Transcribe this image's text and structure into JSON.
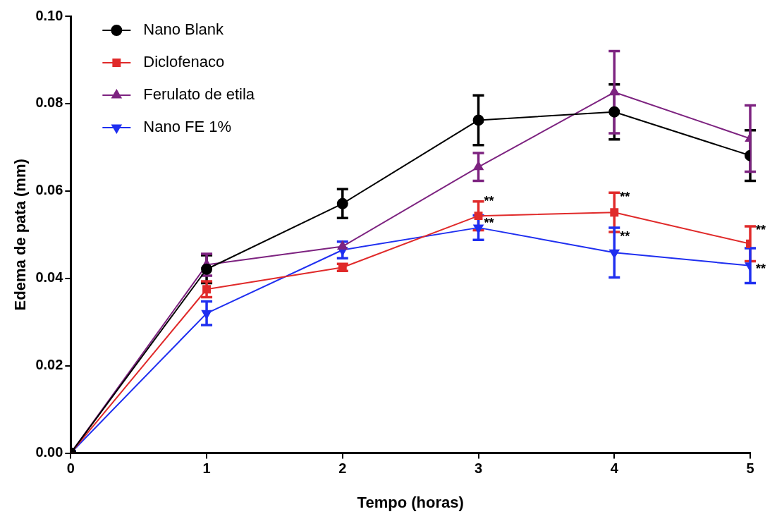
{
  "chart_data": {
    "type": "line",
    "xlabel": "Tempo (horas)",
    "ylabel": "Edema de pata (mm)",
    "x": [
      0,
      1,
      2,
      3,
      4,
      5
    ],
    "xlim": [
      0,
      5
    ],
    "xticks": [
      0,
      1,
      2,
      3,
      4,
      5
    ],
    "ylim": [
      0,
      0.1
    ],
    "yticks": [
      {
        "value": 0,
        "label": "0.00"
      },
      {
        "value": 0.02,
        "label": "0.02"
      },
      {
        "value": 0.04,
        "label": "0.04"
      },
      {
        "value": 0.06,
        "label": "0.06"
      },
      {
        "value": 0.08,
        "label": "0.08"
      },
      {
        "value": 0.1,
        "label": "0.10"
      }
    ],
    "grid": false,
    "legend": "top left",
    "line_style": "solid",
    "series": [
      {
        "name": "Nano Blank",
        "color": "#000000",
        "marker": "circle",
        "values": [
          0,
          0.0421,
          0.0571,
          0.0762,
          0.0781,
          0.0681
        ],
        "errors": [
          null,
          0.0032,
          0.0033,
          0.0057,
          0.0063,
          0.0058
        ]
      },
      {
        "name": "Diclofenaco",
        "color": "#e02a2a",
        "marker": "square",
        "values": [
          0,
          0.0375,
          0.0425,
          0.0543,
          0.0551,
          0.0479
        ],
        "errors": [
          null,
          0.0018,
          0.0008,
          0.0033,
          0.0045,
          0.004
        ]
      },
      {
        "name": "Ferulato de etila",
        "color": "#7d2380",
        "marker": "triangle",
        "values": [
          0,
          0.0431,
          0.0473,
          0.0655,
          0.0826,
          0.072
        ],
        "errors": [
          null,
          0.0025,
          null,
          0.0032,
          0.0094,
          0.0076
        ]
      },
      {
        "name": "Nano FE 1%",
        "color": "#1f2ff0",
        "marker": "triangle-down",
        "values": [
          0,
          0.032,
          0.0465,
          0.0516,
          0.0459,
          0.0429
        ],
        "errors": [
          null,
          0.0027,
          0.0019,
          0.0028,
          0.0057,
          0.004
        ]
      }
    ],
    "annotations": [
      {
        "text": "**",
        "x": 3,
        "y": 0.0575
      },
      {
        "text": "**",
        "x": 3,
        "y": 0.0525
      },
      {
        "text": "**",
        "x": 4,
        "y": 0.0585
      },
      {
        "text": "**",
        "x": 4,
        "y": 0.0495
      },
      {
        "text": "**",
        "x": 5,
        "y": 0.051
      },
      {
        "text": "**",
        "x": 5,
        "y": 0.042
      }
    ]
  }
}
